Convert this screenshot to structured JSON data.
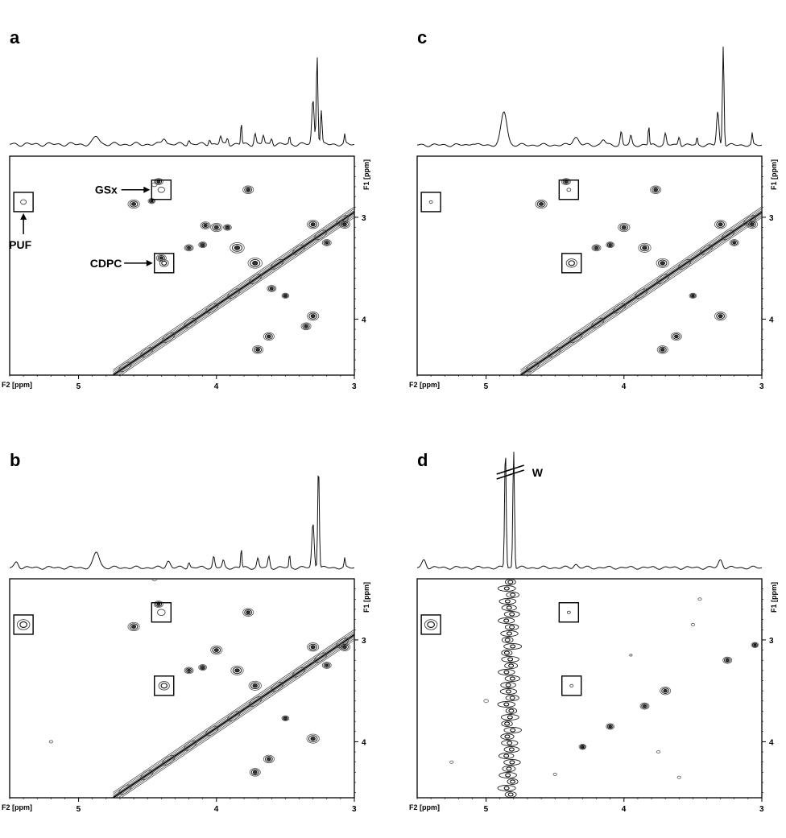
{
  "chart_data": [
    {
      "type": "heatmap",
      "panel_label": "a",
      "x_axis_name": "F2 [ppm]",
      "y_axis_name": "F1 [ppm]",
      "x_range": [
        5.5,
        3.0
      ],
      "y_range": [
        2.4,
        4.55
      ],
      "x_ticks": [
        5,
        4,
        3
      ],
      "y_ticks": [
        3,
        4
      ],
      "spectrum_1d": {
        "baseline": 0.06,
        "peaks": [
          {
            "x": 4.87,
            "h": 0.07,
            "w": 0.03
          },
          {
            "x": 4.38,
            "h": 0.06,
            "w": 0.02
          },
          {
            "x": 4.2,
            "h": 0.04,
            "w": 0.01
          },
          {
            "x": 4.05,
            "h": 0.05,
            "w": 0.01
          },
          {
            "x": 3.97,
            "h": 0.07,
            "w": 0.01
          },
          {
            "x": 3.92,
            "h": 0.06,
            "w": 0.01
          },
          {
            "x": 3.82,
            "h": 0.2,
            "w": 0.006
          },
          {
            "x": 3.72,
            "h": 0.1,
            "w": 0.01
          },
          {
            "x": 3.66,
            "h": 0.08,
            "w": 0.01
          },
          {
            "x": 3.6,
            "h": 0.06,
            "w": 0.01
          },
          {
            "x": 3.47,
            "h": 0.07,
            "w": 0.006
          },
          {
            "x": 3.3,
            "h": 0.4,
            "w": 0.012
          },
          {
            "x": 3.27,
            "h": 0.82,
            "w": 0.008
          },
          {
            "x": 3.24,
            "h": 0.3,
            "w": 0.008
          },
          {
            "x": 3.07,
            "h": 0.08,
            "w": 0.006
          }
        ]
      },
      "diagonal": true,
      "cross_peaks": [
        {
          "x": 4.42,
          "y": 2.65,
          "r": 1
        },
        {
          "x": 3.77,
          "y": 2.73,
          "r": 1.2
        },
        {
          "x": 4.6,
          "y": 2.87,
          "r": 1.3
        },
        {
          "x": 4.47,
          "y": 2.84,
          "r": 0.8
        },
        {
          "x": 4.0,
          "y": 3.1,
          "r": 1.3
        },
        {
          "x": 4.08,
          "y": 3.08,
          "r": 1.1
        },
        {
          "x": 3.92,
          "y": 3.1,
          "r": 0.9
        },
        {
          "x": 4.2,
          "y": 3.3,
          "r": 1.0
        },
        {
          "x": 4.1,
          "y": 3.27,
          "r": 0.9
        },
        {
          "x": 3.85,
          "y": 3.3,
          "r": 1.6
        },
        {
          "x": 3.72,
          "y": 3.45,
          "r": 1.6
        },
        {
          "x": 3.3,
          "y": 3.07,
          "r": 1.3
        },
        {
          "x": 3.07,
          "y": 3.07,
          "r": 1.2
        },
        {
          "x": 3.2,
          "y": 3.25,
          "r": 1.0
        },
        {
          "x": 3.6,
          "y": 3.7,
          "r": 1.0
        },
        {
          "x": 3.5,
          "y": 3.77,
          "r": 0.8
        },
        {
          "x": 3.3,
          "y": 3.97,
          "r": 1.3
        },
        {
          "x": 3.35,
          "y": 4.07,
          "r": 1.1
        },
        {
          "x": 3.62,
          "y": 4.17,
          "r": 1.2
        },
        {
          "x": 3.7,
          "y": 4.3,
          "r": 1.2
        },
        {
          "x": 4.4,
          "y": 3.4,
          "r": 1.1
        },
        {
          "x": 4.45,
          "y": 2.68,
          "r": 0.6
        },
        {
          "x": 3.8,
          "y": 2.35,
          "r": 0.5
        }
      ],
      "boxed_peaks": [
        {
          "x": 4.4,
          "y": 2.73,
          "r": 0.7
        },
        {
          "x": 5.4,
          "y": 2.85,
          "r": 0.6
        },
        {
          "x": 4.38,
          "y": 3.45,
          "r": 0.9
        }
      ],
      "annotations": [
        {
          "text": "GSx",
          "box": 0,
          "arrow": "left"
        },
        {
          "text": "PUF",
          "box": 1,
          "arrow": "below"
        },
        {
          "text": "CDPC",
          "box": 2,
          "arrow": "left"
        }
      ]
    },
    {
      "type": "heatmap",
      "panel_label": "c",
      "x_axis_name": "F2 [ppm]",
      "y_axis_name": "F1 [ppm]",
      "x_range": [
        5.5,
        3.0
      ],
      "y_range": [
        2.4,
        4.55
      ],
      "x_ticks": [
        5,
        4,
        3
      ],
      "y_ticks": [
        3,
        4
      ],
      "spectrum_1d": {
        "baseline": 0.05,
        "peaks": [
          {
            "x": 5.1,
            "h": 0.02,
            "w": 0.02
          },
          {
            "x": 4.87,
            "h": 0.3,
            "w": 0.03
          },
          {
            "x": 4.35,
            "h": 0.07,
            "w": 0.03
          },
          {
            "x": 4.15,
            "h": 0.05,
            "w": 0.02
          },
          {
            "x": 4.02,
            "h": 0.12,
            "w": 0.01
          },
          {
            "x": 3.95,
            "h": 0.08,
            "w": 0.01
          },
          {
            "x": 3.82,
            "h": 0.18,
            "w": 0.006
          },
          {
            "x": 3.7,
            "h": 0.1,
            "w": 0.01
          },
          {
            "x": 3.6,
            "h": 0.08,
            "w": 0.01
          },
          {
            "x": 3.47,
            "h": 0.07,
            "w": 0.006
          },
          {
            "x": 3.32,
            "h": 0.3,
            "w": 0.012
          },
          {
            "x": 3.28,
            "h": 0.9,
            "w": 0.008
          },
          {
            "x": 3.07,
            "h": 0.1,
            "w": 0.006
          }
        ]
      },
      "diagonal": true,
      "cross_peaks": [
        {
          "x": 4.42,
          "y": 2.65,
          "r": 1
        },
        {
          "x": 3.77,
          "y": 2.73,
          "r": 1.2
        },
        {
          "x": 4.6,
          "y": 2.87,
          "r": 1.3
        },
        {
          "x": 4.0,
          "y": 3.1,
          "r": 1.3
        },
        {
          "x": 4.1,
          "y": 3.27,
          "r": 0.9
        },
        {
          "x": 3.85,
          "y": 3.3,
          "r": 1.4
        },
        {
          "x": 3.72,
          "y": 3.45,
          "r": 1.4
        },
        {
          "x": 3.3,
          "y": 3.07,
          "r": 1.3
        },
        {
          "x": 3.07,
          "y": 3.07,
          "r": 1.2
        },
        {
          "x": 3.2,
          "y": 3.25,
          "r": 1.0
        },
        {
          "x": 3.5,
          "y": 3.77,
          "r": 0.8
        },
        {
          "x": 3.3,
          "y": 3.97,
          "r": 1.3
        },
        {
          "x": 3.62,
          "y": 4.17,
          "r": 1.2
        },
        {
          "x": 3.72,
          "y": 4.3,
          "r": 1.2
        },
        {
          "x": 4.2,
          "y": 3.3,
          "r": 1.0
        }
      ],
      "boxed_peaks": [
        {
          "x": 4.4,
          "y": 2.73,
          "r": 0.4
        },
        {
          "x": 5.4,
          "y": 2.85,
          "r": 0.3
        },
        {
          "x": 4.38,
          "y": 3.45,
          "r": 1.1
        }
      ],
      "annotations": []
    },
    {
      "type": "heatmap",
      "panel_label": "b",
      "x_axis_name": "F2 [ppm]",
      "y_axis_name": "F1 [ppm]",
      "x_range": [
        5.5,
        3.0
      ],
      "y_range": [
        2.4,
        4.55
      ],
      "x_ticks": [
        5,
        4,
        3
      ],
      "y_ticks": [
        3,
        4
      ],
      "spectrum_1d": {
        "baseline": 0.05,
        "peaks": [
          {
            "x": 5.45,
            "h": 0.05,
            "w": 0.02
          },
          {
            "x": 4.87,
            "h": 0.14,
            "w": 0.03
          },
          {
            "x": 4.35,
            "h": 0.06,
            "w": 0.02
          },
          {
            "x": 4.2,
            "h": 0.05,
            "w": 0.01
          },
          {
            "x": 4.02,
            "h": 0.1,
            "w": 0.01
          },
          {
            "x": 3.95,
            "h": 0.06,
            "w": 0.01
          },
          {
            "x": 3.82,
            "h": 0.18,
            "w": 0.006
          },
          {
            "x": 3.7,
            "h": 0.08,
            "w": 0.01
          },
          {
            "x": 3.62,
            "h": 0.1,
            "w": 0.01
          },
          {
            "x": 3.47,
            "h": 0.12,
            "w": 0.006
          },
          {
            "x": 3.3,
            "h": 0.4,
            "w": 0.012
          },
          {
            "x": 3.26,
            "h": 0.95,
            "w": 0.008
          },
          {
            "x": 3.07,
            "h": 0.08,
            "w": 0.006
          }
        ]
      },
      "diagonal": true,
      "cross_peaks": [
        {
          "x": 4.42,
          "y": 2.65,
          "r": 1
        },
        {
          "x": 3.77,
          "y": 2.73,
          "r": 1.2
        },
        {
          "x": 4.6,
          "y": 2.87,
          "r": 1.3
        },
        {
          "x": 4.0,
          "y": 3.1,
          "r": 1.3
        },
        {
          "x": 4.1,
          "y": 3.27,
          "r": 0.9
        },
        {
          "x": 3.85,
          "y": 3.3,
          "r": 1.4
        },
        {
          "x": 3.72,
          "y": 3.45,
          "r": 1.4
        },
        {
          "x": 3.3,
          "y": 3.07,
          "r": 1.3
        },
        {
          "x": 3.07,
          "y": 3.07,
          "r": 1.2
        },
        {
          "x": 3.2,
          "y": 3.25,
          "r": 1.0
        },
        {
          "x": 3.5,
          "y": 3.77,
          "r": 0.8
        },
        {
          "x": 3.3,
          "y": 3.97,
          "r": 1.4
        },
        {
          "x": 3.62,
          "y": 4.17,
          "r": 1.2
        },
        {
          "x": 3.72,
          "y": 4.3,
          "r": 1.2
        },
        {
          "x": 4.2,
          "y": 3.3,
          "r": 1.0
        },
        {
          "x": 5.2,
          "y": 4.0,
          "r": 0.4
        },
        {
          "x": 4.45,
          "y": 2.4,
          "r": 0.6
        }
      ],
      "boxed_peaks": [
        {
          "x": 4.4,
          "y": 2.73,
          "r": 0.8
        },
        {
          "x": 5.4,
          "y": 2.85,
          "r": 1.3
        },
        {
          "x": 4.38,
          "y": 3.45,
          "r": 1.1
        }
      ],
      "annotations": []
    },
    {
      "type": "heatmap",
      "panel_label": "d",
      "x_axis_name": "F2 [ppm]",
      "y_axis_name": "F1 [ppm]",
      "x_range": [
        5.5,
        3.0
      ],
      "y_range": [
        2.4,
        4.55
      ],
      "x_ticks": [
        5,
        4,
        3
      ],
      "y_ticks": [
        3,
        4
      ],
      "spectrum_1d": {
        "baseline": 0.05,
        "peaks": [
          {
            "x": 5.45,
            "h": 0.07,
            "w": 0.02
          },
          {
            "x": 4.86,
            "h": 1.1,
            "w": 0.008
          },
          {
            "x": 4.8,
            "h": 1.1,
            "w": 0.008
          },
          {
            "x": 4.35,
            "h": 0.03,
            "w": 0.02
          },
          {
            "x": 3.3,
            "h": 0.07,
            "w": 0.02
          }
        ]
      },
      "diagonal": false,
      "water_label": "W",
      "cross_peaks": [
        {
          "x": 3.7,
          "y": 3.5,
          "r": 1.2
        },
        {
          "x": 3.85,
          "y": 3.65,
          "r": 1.0
        },
        {
          "x": 4.1,
          "y": 3.85,
          "r": 0.9
        },
        {
          "x": 4.3,
          "y": 4.05,
          "r": 0.8
        },
        {
          "x": 3.25,
          "y": 3.2,
          "r": 1.0
        },
        {
          "x": 3.05,
          "y": 3.05,
          "r": 0.8
        },
        {
          "x": 5.0,
          "y": 3.6,
          "r": 0.5
        },
        {
          "x": 5.25,
          "y": 4.2,
          "r": 0.4
        },
        {
          "x": 4.5,
          "y": 4.32,
          "r": 0.4
        },
        {
          "x": 3.5,
          "y": 2.85,
          "r": 0.4
        },
        {
          "x": 3.95,
          "y": 3.15,
          "r": 0.3
        },
        {
          "x": 3.75,
          "y": 4.1,
          "r": 0.4
        },
        {
          "x": 3.45,
          "y": 2.6,
          "r": 0.4
        },
        {
          "x": 3.6,
          "y": 4.35,
          "r": 0.4
        }
      ],
      "boxed_peaks": [
        {
          "x": 4.4,
          "y": 2.73,
          "r": 0.2
        },
        {
          "x": 5.4,
          "y": 2.85,
          "r": 1.3
        },
        {
          "x": 4.38,
          "y": 3.45,
          "r": 0.3
        }
      ],
      "water_line_x": 4.83,
      "annotations": []
    }
  ]
}
